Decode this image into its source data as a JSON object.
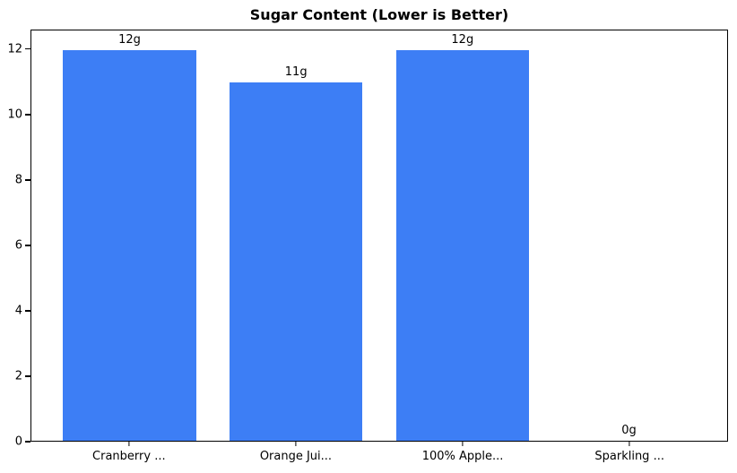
{
  "chart_data": {
    "type": "bar",
    "title": "Sugar Content (Lower is Better)",
    "categories": [
      "Cranberry ...",
      "Orange Jui...",
      "100% Apple...",
      "Sparkling ..."
    ],
    "values": [
      12,
      11,
      12,
      0
    ],
    "value_labels": [
      "12g",
      "11g",
      "12g",
      "0g"
    ],
    "xlabel": "",
    "ylabel": "",
    "ylim": [
      0,
      12.6
    ],
    "yticks": [
      0,
      2,
      4,
      6,
      8,
      10,
      12
    ],
    "bar_color": "#3d7ef5",
    "frame_color": "#000000",
    "background_color": "#ffffff",
    "bar_width_fraction": 0.8,
    "x_margin_fraction": 0.59,
    "grid": false,
    "legend": null
  }
}
